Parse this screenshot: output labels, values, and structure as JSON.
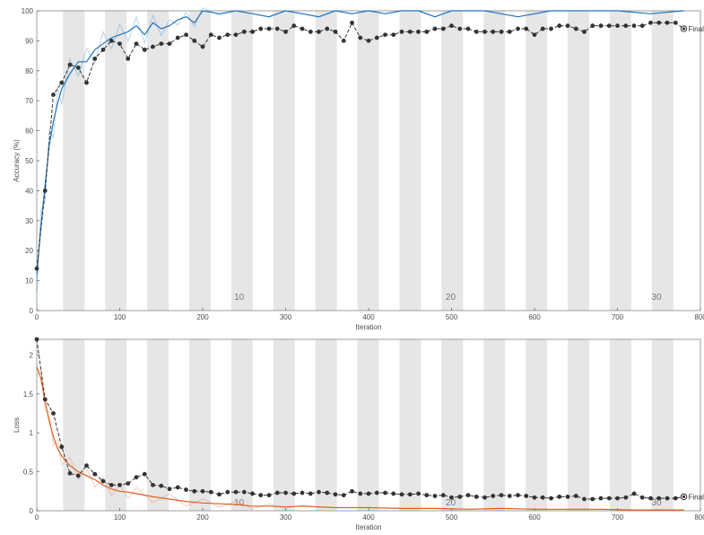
{
  "chart_data": [
    {
      "type": "line",
      "title": "",
      "xlabel": "Iteration",
      "ylabel": "Accuracy (%)",
      "xlim": [
        0,
        800
      ],
      "ylim": [
        0,
        100
      ],
      "xticks": [
        "0",
        "100",
        "200",
        "300",
        "400",
        "500",
        "600",
        "700",
        "800"
      ],
      "yticks": [
        "0",
        "10",
        "20",
        "30",
        "40",
        "50",
        "60",
        "70",
        "80",
        "90",
        "100"
      ],
      "epoch_labels": [
        {
          "text": "10",
          "x": 244
        },
        {
          "text": "20",
          "x": 499
        },
        {
          "text": "30",
          "x": 747
        }
      ],
      "final_marker_label": "Final",
      "grid": false,
      "series": [
        {
          "role": "training-smoothed",
          "color": "#1f77c4",
          "x": [
            0,
            5,
            10,
            15,
            20,
            25,
            30,
            40,
            50,
            60,
            70,
            80,
            90,
            100,
            110,
            120,
            130,
            140,
            150,
            160,
            170,
            180,
            190,
            200,
            220,
            240,
            260,
            280,
            300,
            320,
            340,
            360,
            380,
            400,
            420,
            440,
            460,
            480,
            500,
            540,
            580,
            620,
            660,
            700,
            740,
            780
          ],
          "y": [
            12,
            28,
            42,
            55,
            63,
            69,
            74,
            79,
            83,
            83,
            87,
            89,
            91,
            92,
            93,
            95,
            92,
            96,
            94,
            95,
            97,
            98,
            96,
            100,
            99,
            100,
            99,
            98,
            100,
            99,
            98,
            100,
            99,
            100,
            99,
            100,
            100,
            98,
            100,
            100,
            98,
            100,
            100,
            100,
            99,
            100
          ]
        },
        {
          "role": "validation",
          "color": "#333333",
          "x": [
            0,
            10,
            20,
            30,
            40,
            50,
            60,
            70,
            80,
            90,
            100,
            110,
            120,
            130,
            140,
            150,
            160,
            170,
            180,
            190,
            200,
            210,
            220,
            230,
            240,
            250,
            260,
            270,
            280,
            290,
            300,
            310,
            320,
            330,
            340,
            350,
            360,
            370,
            380,
            390,
            400,
            410,
            420,
            430,
            440,
            450,
            460,
            470,
            480,
            490,
            500,
            510,
            520,
            530,
            540,
            550,
            560,
            570,
            580,
            590,
            600,
            610,
            620,
            630,
            640,
            650,
            660,
            670,
            680,
            690,
            700,
            710,
            720,
            730,
            740,
            750,
            760,
            770,
            780
          ],
          "y": [
            14,
            40,
            72,
            76,
            82,
            81,
            76,
            84,
            87,
            90,
            89,
            84,
            89,
            87,
            88,
            89,
            89,
            91,
            92,
            90,
            88,
            92,
            91,
            92,
            92,
            93,
            93,
            94,
            94,
            94,
            93,
            95,
            94,
            93,
            93,
            94,
            93,
            90,
            96,
            91,
            90,
            91,
            92,
            92,
            93,
            93,
            93,
            93,
            94,
            94,
            95,
            94,
            94,
            93,
            93,
            93,
            93,
            93,
            94,
            94,
            92,
            94,
            94,
            95,
            95,
            94,
            93,
            95,
            95,
            95,
            95,
            95,
            95,
            95,
            96,
            96,
            96,
            96,
            94
          ]
        }
      ],
      "final_value": 94
    },
    {
      "type": "line",
      "title": "",
      "xlabel": "Iteration",
      "ylabel": "Loss",
      "xlim": [
        0,
        800
      ],
      "ylim": [
        0,
        2.2
      ],
      "xticks": [
        "0",
        "100",
        "200",
        "300",
        "400",
        "500",
        "600",
        "700",
        "800"
      ],
      "yticks": [
        "0",
        "0.5",
        "1",
        "1.5",
        "2"
      ],
      "epoch_labels": [
        {
          "text": "10",
          "x": 244
        },
        {
          "text": "20",
          "x": 499
        },
        {
          "text": "30",
          "x": 747
        }
      ],
      "final_marker_label": "Final",
      "grid": false,
      "series": [
        {
          "role": "training-smoothed",
          "color": "#e06020",
          "x": [
            0,
            5,
            10,
            15,
            20,
            25,
            30,
            40,
            50,
            60,
            70,
            80,
            90,
            100,
            110,
            120,
            140,
            160,
            180,
            200,
            220,
            240,
            260,
            280,
            300,
            320,
            340,
            360,
            380,
            400,
            440,
            480,
            520,
            560,
            600,
            640,
            680,
            720,
            760,
            780
          ],
          "y": [
            1.85,
            1.7,
            1.4,
            1.15,
            0.95,
            0.8,
            0.7,
            0.58,
            0.5,
            0.45,
            0.4,
            0.33,
            0.28,
            0.25,
            0.24,
            0.22,
            0.18,
            0.15,
            0.12,
            0.1,
            0.09,
            0.08,
            0.06,
            0.06,
            0.05,
            0.06,
            0.05,
            0.04,
            0.04,
            0.04,
            0.03,
            0.03,
            0.02,
            0.03,
            0.02,
            0.02,
            0.02,
            0.01,
            0.01,
            0.01
          ]
        },
        {
          "role": "validation",
          "color": "#333333",
          "x": [
            0,
            10,
            20,
            30,
            40,
            50,
            60,
            70,
            80,
            90,
            100,
            110,
            120,
            130,
            140,
            150,
            160,
            170,
            180,
            190,
            200,
            210,
            220,
            230,
            240,
            250,
            260,
            270,
            280,
            290,
            300,
            310,
            320,
            330,
            340,
            350,
            360,
            370,
            380,
            390,
            400,
            410,
            420,
            430,
            440,
            450,
            460,
            470,
            480,
            490,
            500,
            510,
            520,
            530,
            540,
            550,
            560,
            570,
            580,
            590,
            600,
            610,
            620,
            630,
            640,
            650,
            660,
            670,
            680,
            690,
            700,
            710,
            720,
            730,
            740,
            750,
            760,
            770,
            780
          ],
          "y": [
            2.2,
            1.43,
            1.25,
            0.82,
            0.48,
            0.45,
            0.58,
            0.47,
            0.38,
            0.33,
            0.33,
            0.35,
            0.43,
            0.47,
            0.33,
            0.32,
            0.28,
            0.3,
            0.27,
            0.25,
            0.25,
            0.24,
            0.21,
            0.24,
            0.24,
            0.24,
            0.22,
            0.2,
            0.2,
            0.23,
            0.23,
            0.22,
            0.23,
            0.22,
            0.24,
            0.23,
            0.21,
            0.2,
            0.25,
            0.22,
            0.22,
            0.23,
            0.23,
            0.22,
            0.21,
            0.21,
            0.22,
            0.2,
            0.19,
            0.2,
            0.17,
            0.18,
            0.2,
            0.18,
            0.17,
            0.19,
            0.2,
            0.19,
            0.2,
            0.19,
            0.17,
            0.17,
            0.16,
            0.18,
            0.18,
            0.19,
            0.15,
            0.15,
            0.16,
            0.16,
            0.16,
            0.17,
            0.22,
            0.17,
            0.16,
            0.16,
            0.16,
            0.16,
            0.18
          ]
        }
      ],
      "final_value": 0.18
    }
  ]
}
